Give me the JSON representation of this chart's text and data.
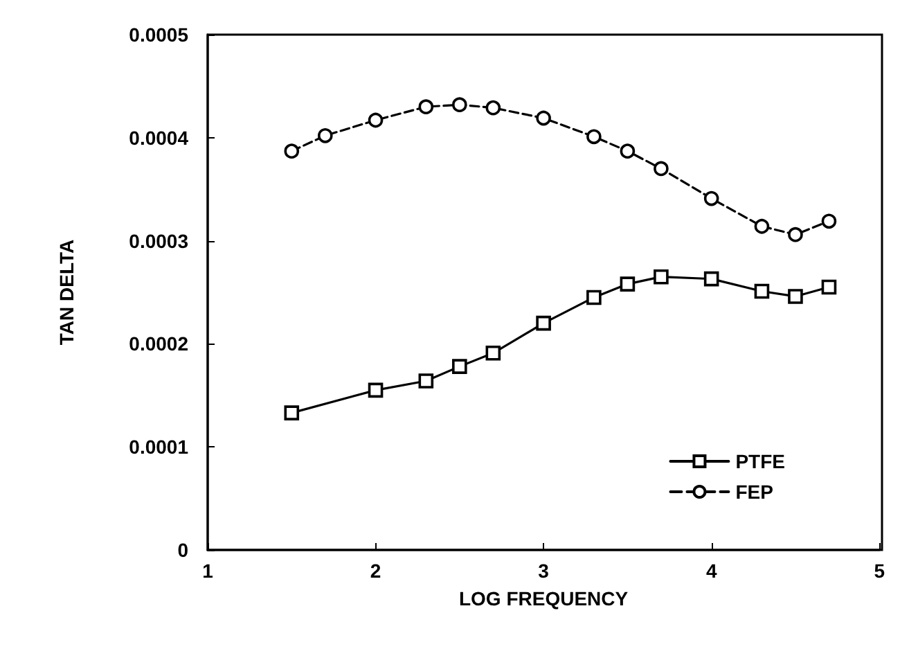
{
  "chart_data": {
    "type": "line",
    "xlabel": "LOG FREQUENCY",
    "ylabel": "TAN DELTA",
    "xlim": [
      1,
      5
    ],
    "xticks": [
      1,
      2,
      3,
      4,
      5
    ],
    "ylim": [
      0,
      0.0005
    ],
    "yticks": [
      0,
      0.0001,
      0.0002,
      0.0003,
      0.0004,
      0.0005
    ],
    "grid": false,
    "legend": "bottom right",
    "series": [
      {
        "name": "PTFE",
        "color": "#000000",
        "marker": "square",
        "line_style": "solid",
        "x": [
          1.5,
          2.0,
          2.3,
          2.5,
          2.7,
          3.0,
          3.3,
          3.5,
          3.7,
          4.0,
          4.3,
          4.5,
          4.7
        ],
        "values": [
          0.000133,
          0.000155,
          0.000164,
          0.000178,
          0.000191,
          0.00022,
          0.000245,
          0.000258,
          0.000265,
          0.000263,
          0.000251,
          0.000246,
          0.000255
        ]
      },
      {
        "name": "FEP",
        "color": "#000000",
        "marker": "circle",
        "line_style": "dashed",
        "x": [
          1.5,
          1.7,
          2.0,
          2.3,
          2.5,
          2.7,
          3.0,
          3.3,
          3.5,
          3.7,
          4.0,
          4.3,
          4.5,
          4.7
        ],
        "values": [
          0.000387,
          0.000402,
          0.000417,
          0.00043,
          0.000432,
          0.000429,
          0.000419,
          0.000401,
          0.000387,
          0.00037,
          0.000341,
          0.000314,
          0.000306,
          0.000319
        ]
      }
    ]
  }
}
